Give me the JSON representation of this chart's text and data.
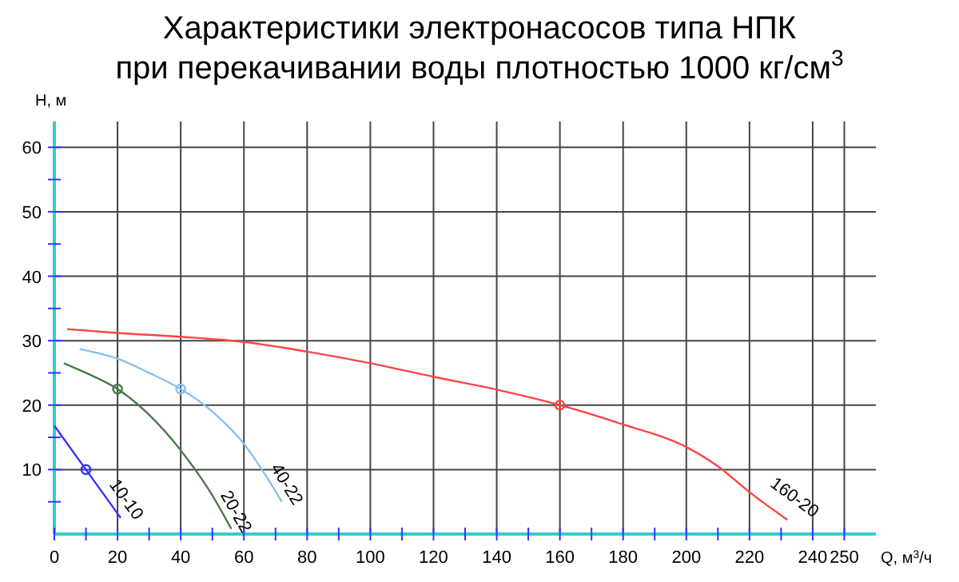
{
  "chart_data": {
    "type": "line",
    "title": "Характеристики электронасосов типа НПК\nпри перекачивании воды плотностью 1000 кг/см$^{3}$",
    "xlabel": "Q, м$^{3}$/ч",
    "ylabel": "H, м",
    "xlim": [
      0,
      260
    ],
    "ylim": [
      0,
      64
    ],
    "xticks": [
      0,
      {
        "value": 10,
        "label": null
      },
      20,
      {
        "value": 30,
        "label": null
      },
      40,
      {
        "value": 50,
        "label": null
      },
      60,
      {
        "value": 70,
        "label": null
      },
      80,
      {
        "value": 90,
        "label": null
      },
      100,
      {
        "value": 110,
        "label": null
      },
      120,
      {
        "value": 130,
        "label": null
      },
      140,
      {
        "value": 150,
        "label": null
      },
      160,
      {
        "value": 170,
        "label": null
      },
      180,
      {
        "value": 190,
        "label": null
      },
      200,
      {
        "value": 210,
        "label": null
      },
      220,
      {
        "value": 230,
        "label": null
      },
      240,
      250
    ],
    "yticks": [
      {
        "value": 5,
        "label": null
      },
      10,
      {
        "value": 15,
        "label": null
      },
      20,
      {
        "value": 25,
        "label": null
      },
      30,
      {
        "value": 35,
        "label": null
      },
      40,
      {
        "value": 45,
        "label": null
      },
      50,
      {
        "value": 55,
        "label": null
      },
      60
    ],
    "grid": true,
    "marker": "none",
    "line_style": "solid",
    "series": [
      {
        "name": "10-10",
        "color": "#3333ff",
        "x": [
          0,
          10,
          21
        ],
        "values": [
          16.8,
          10,
          2.5
        ]
      },
      {
        "name": "20-22",
        "color": "#4a7a4a",
        "x": [
          3,
          10,
          20,
          30,
          40,
          50,
          56
        ],
        "values": [
          26.5,
          25,
          22.5,
          18.5,
          13,
          6,
          0.8
        ]
      },
      {
        "name": "40-22",
        "color": "#88c0ee",
        "x": [
          8,
          20,
          30,
          40,
          50,
          60,
          67,
          72
        ],
        "values": [
          28.7,
          27.2,
          25,
          22.5,
          19,
          14,
          9,
          5
        ]
      },
      {
        "name": "160-20",
        "color": "#ff4444",
        "x": [
          4,
          20,
          40,
          60,
          80,
          100,
          120,
          140,
          160,
          180,
          200,
          210,
          220,
          232
        ],
        "values": [
          31.8,
          31.2,
          30.6,
          29.8,
          28.3,
          26.5,
          24.4,
          22.4,
          20,
          17,
          13.5,
          10.5,
          6.5,
          2.2
        ]
      },
      {
        "type": "scatter",
        "marker": "circle",
        "x": [
          10,
          20,
          40,
          160
        ],
        "values": [
          10,
          22.5,
          22.5,
          20
        ],
        "colors": [
          "#3333ff",
          "#4a7a4a",
          "#88c0ee",
          "#ff4444"
        ]
      }
    ]
  }
}
